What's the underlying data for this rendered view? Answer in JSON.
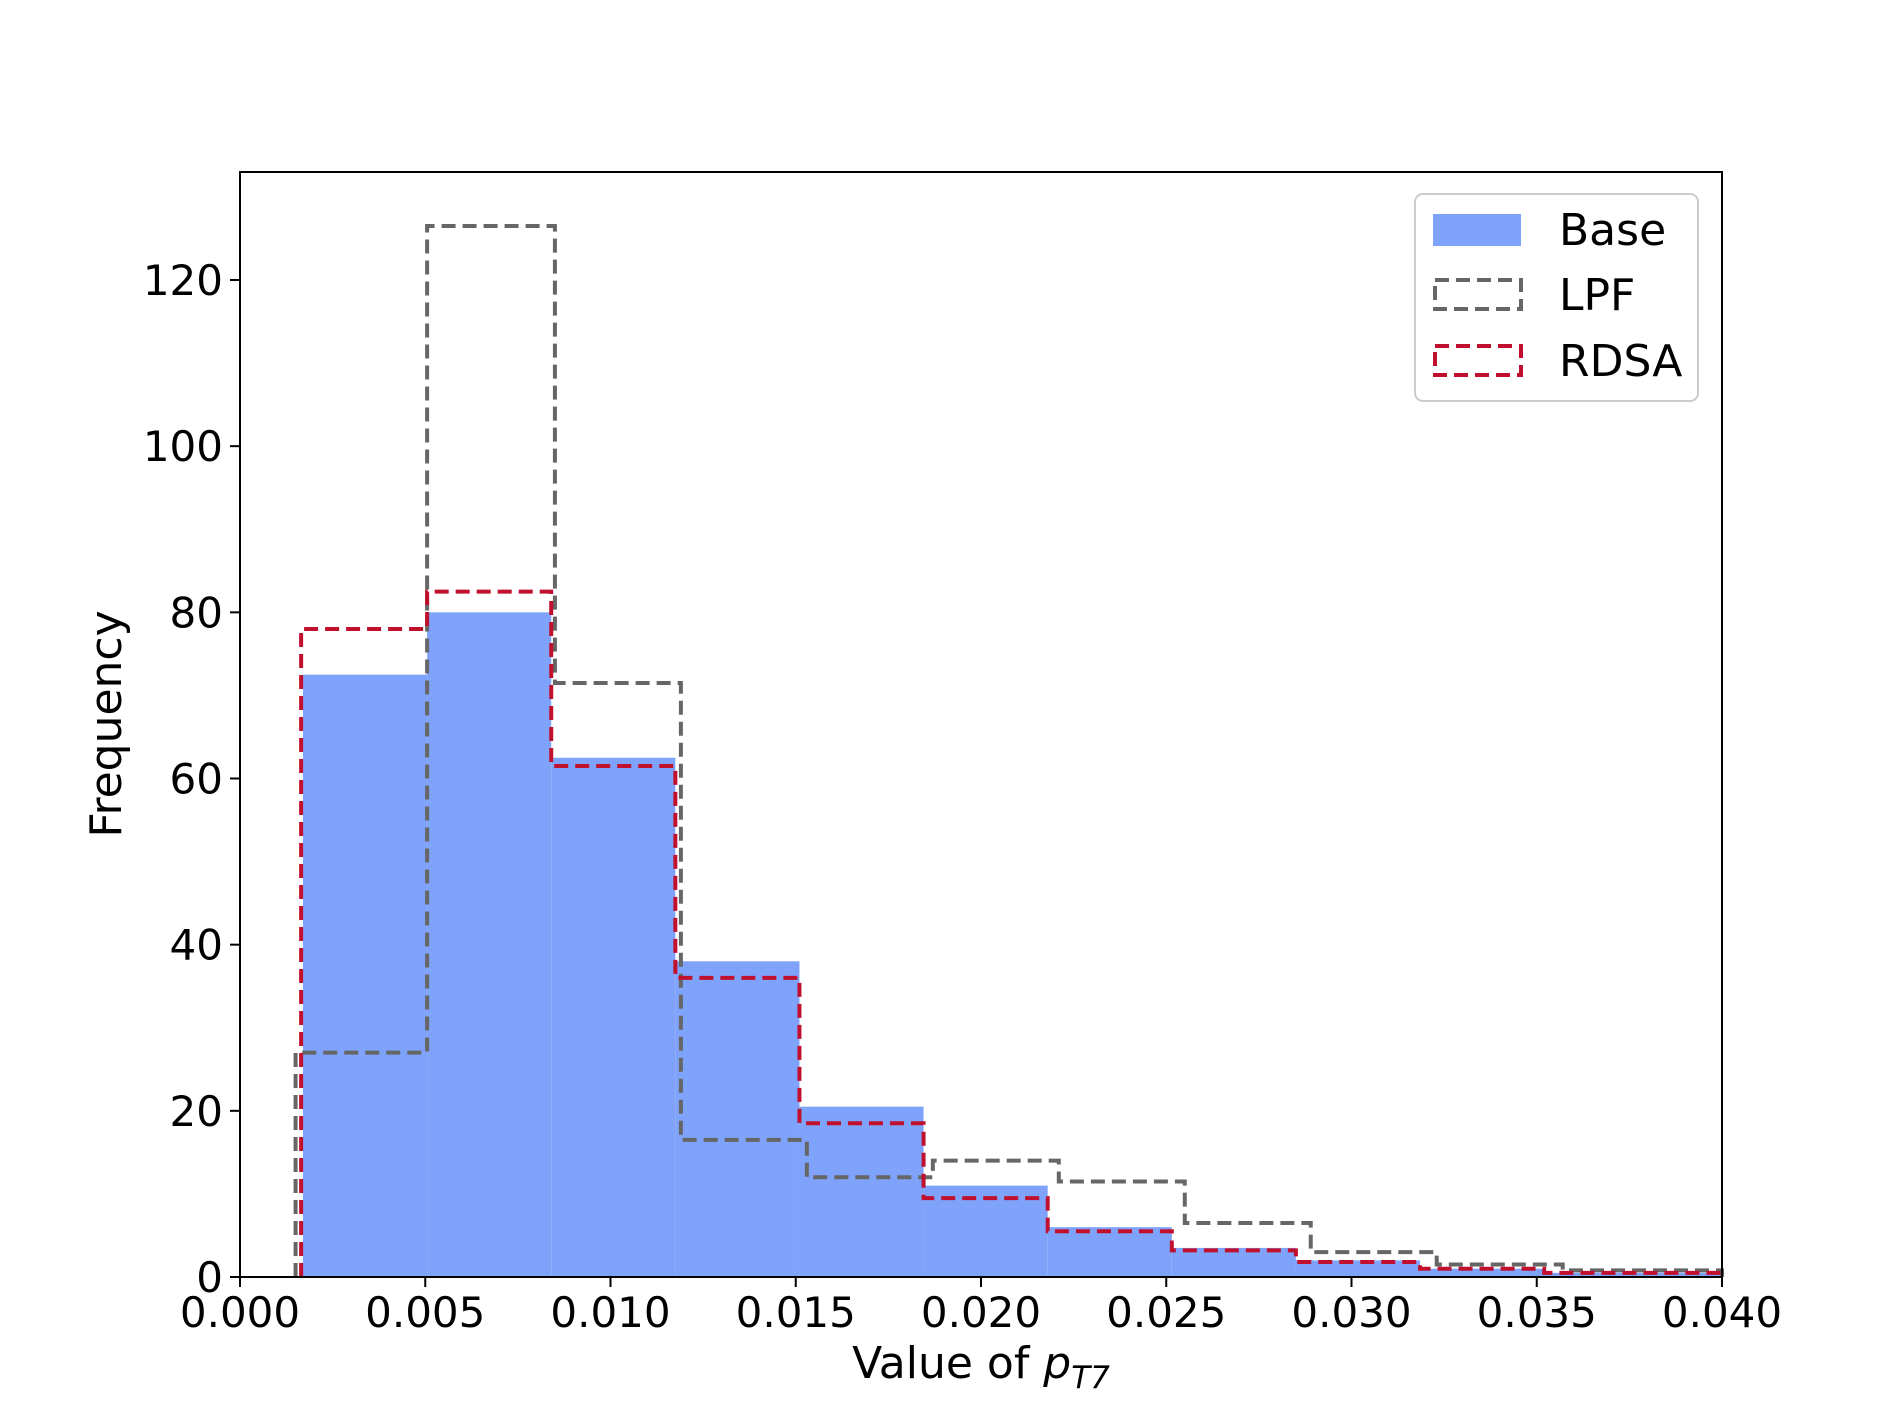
{
  "chart_data": {
    "type": "histogram",
    "title": "",
    "xlabel": {
      "prefix": "Value of ",
      "symbol": "p",
      "subscript": "T7"
    },
    "ylabel": "Frequency",
    "xlim": [
      0.0,
      0.04
    ],
    "ylim": [
      0,
      133
    ],
    "xticks": [
      "0.000",
      "0.005",
      "0.010",
      "0.015",
      "0.020",
      "0.025",
      "0.030",
      "0.035",
      "0.040"
    ],
    "xtick_values": [
      0.0,
      0.005,
      0.01,
      0.015,
      0.02,
      0.025,
      0.03,
      0.035,
      0.04
    ],
    "yticks": [
      "0",
      "20",
      "40",
      "60",
      "80",
      "100",
      "120"
    ],
    "ytick_values": [
      0,
      20,
      40,
      60,
      80,
      100,
      120
    ],
    "grid": false,
    "legend_position": "top-right",
    "series": [
      {
        "name": "Base",
        "style": "filled",
        "color": "#7fa3fa",
        "bin_edges": [
          0.0017,
          0.00505,
          0.0084,
          0.01175,
          0.0151,
          0.01845,
          0.0218,
          0.02515,
          0.0285,
          0.03185,
          0.0352,
          0.04
        ],
        "values": [
          72.5,
          80,
          62.5,
          38,
          20.5,
          11,
          6,
          3.5,
          2,
          1,
          0.5
        ]
      },
      {
        "name": "LPF",
        "style": "dashed-step",
        "color": "#666666",
        "bin_edges": [
          0.0015,
          0.00505,
          0.0085,
          0.0119,
          0.0153,
          0.0187,
          0.0221,
          0.0255,
          0.0289,
          0.0323,
          0.0357,
          0.04
        ],
        "values": [
          27,
          126.5,
          71.5,
          16.5,
          12,
          14,
          11.5,
          6.5,
          3,
          1.5,
          0.8
        ]
      },
      {
        "name": "RDSA",
        "style": "dashed-step",
        "color": "#c0102e",
        "bin_edges": [
          0.00165,
          0.00505,
          0.0084,
          0.01175,
          0.0151,
          0.01845,
          0.0218,
          0.02515,
          0.0285,
          0.03185,
          0.0352,
          0.04
        ],
        "values": [
          78,
          82.5,
          61.5,
          36,
          18.5,
          9.5,
          5.5,
          3.2,
          1.8,
          1,
          0.5
        ]
      }
    ]
  }
}
